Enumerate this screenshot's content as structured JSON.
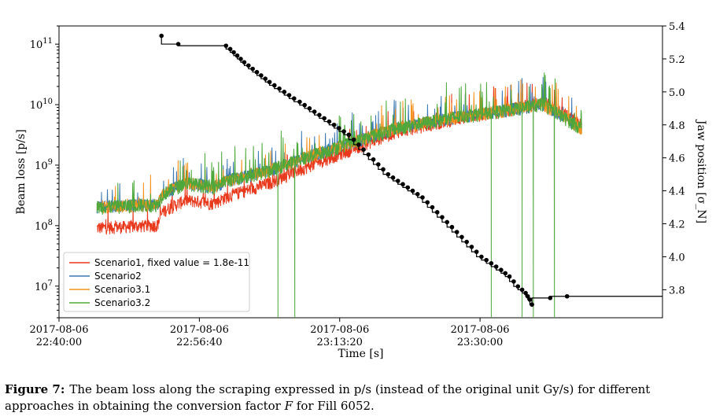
{
  "chart_data": {
    "type": "line",
    "xlabel": "Time [s]",
    "ylabel_left": "Beam loss [p/s]",
    "ylabel_right": "Jaw position [σ_N]",
    "xlim": [
      0,
      4300
    ],
    "ylim_left": [
      3000000.0,
      200000000000.0
    ],
    "yscale_left": "log",
    "ylim_right": [
      3.63,
      5.4
    ],
    "x_ticks": [
      {
        "x": 0,
        "date": "2017-08-06",
        "time": "22:40:00"
      },
      {
        "x": 1000,
        "date": "2017-08-06",
        "time": "22:56:40"
      },
      {
        "x": 2000,
        "date": "2017-08-06",
        "time": "23:13:20"
      },
      {
        "x": 3000,
        "date": "2017-08-06",
        "time": "23:30:00"
      }
    ],
    "y_ticks_left": [
      {
        "value": 10000000.0,
        "base": "10",
        "exp": "7"
      },
      {
        "value": 100000000.0,
        "base": "10",
        "exp": "8"
      },
      {
        "value": 1000000000.0,
        "base": "10",
        "exp": "9"
      },
      {
        "value": 10000000000.0,
        "base": "10",
        "exp": "10"
      },
      {
        "value": 100000000000.0,
        "base": "10",
        "exp": "11"
      }
    ],
    "y_ticks_right": [
      "3.8",
      "4.0",
      "4.2",
      "4.4",
      "4.6",
      "4.8",
      "5.0",
      "5.2",
      "5.4"
    ],
    "legend_position": "lower-left",
    "legend": [
      {
        "label": "Scenario1, fixed value = 1.8e-11",
        "color": "#e8391d"
      },
      {
        "label": "Scenario2",
        "color": "#3b78b2"
      },
      {
        "label": "Scenario3.1",
        "color": "#f3921f"
      },
      {
        "label": "Scenario3.2",
        "color": "#4ca83a"
      }
    ],
    "loss_envelope": {
      "x": [
        270,
        700,
        740,
        900,
        1100,
        1200,
        1500,
        1700,
        2000,
        2400,
        2800,
        3200,
        3450,
        3600,
        3725
      ],
      "scenario3_y": [
        200000000.0,
        220000000.0,
        330000000.0,
        500000000.0,
        430000000.0,
        550000000.0,
        800000000.0,
        1200000000.0,
        2000000000.0,
        4000000000.0,
        6000000000.0,
        8000000000.0,
        10000000000.0,
        6000000000.0,
        4000000000.0
      ],
      "scenario1_y": [
        90000000.0,
        100000000.0,
        170000000.0,
        260000000.0,
        230000000.0,
        300000000.0,
        500000000.0,
        800000000.0,
        1500000000.0,
        3500000000.0,
        5500000000.0,
        8000000000.0,
        11000000000.0,
        7000000000.0,
        4500000000.0
      ]
    },
    "loss_dropouts_x": [
      1560,
      1680,
      3080,
      3300,
      3380,
      3530
    ],
    "jaw_position": {
      "color": "#000000",
      "x": [
        730,
        850,
        1190,
        1220,
        1245,
        1270,
        1295,
        1320,
        1350,
        1380,
        1410,
        1440,
        1470,
        1500,
        1535,
        1570,
        1605,
        1640,
        1675,
        1715,
        1750,
        1785,
        1820,
        1855,
        1890,
        1925,
        1960,
        1995,
        2030,
        2065,
        2100,
        2135,
        2170,
        2205,
        2240,
        2275,
        2310,
        2345,
        2380,
        2415,
        2450,
        2485,
        2520,
        2555,
        2590,
        2625,
        2660,
        2695,
        2730,
        2765,
        2800,
        2835,
        2870,
        2905,
        2940,
        2975,
        3010,
        3045,
        3080,
        3115,
        3150,
        3180,
        3210,
        3240,
        3270,
        3300,
        3325,
        3340,
        3355,
        3370,
        3500,
        3620
      ],
      "y": [
        5.34,
        5.29,
        5.28,
        5.26,
        5.24,
        5.22,
        5.2,
        5.18,
        5.16,
        5.14,
        5.12,
        5.1,
        5.08,
        5.06,
        5.04,
        5.02,
        5.0,
        4.98,
        4.96,
        4.94,
        4.92,
        4.9,
        4.88,
        4.86,
        4.84,
        4.82,
        4.8,
        4.78,
        4.76,
        4.74,
        4.71,
        4.68,
        4.65,
        4.62,
        4.59,
        4.56,
        4.53,
        4.5,
        4.48,
        4.46,
        4.44,
        4.42,
        4.4,
        4.38,
        4.36,
        4.33,
        4.3,
        4.27,
        4.24,
        4.21,
        4.18,
        4.15,
        4.12,
        4.09,
        4.06,
        4.03,
        4.0,
        3.98,
        3.96,
        3.94,
        3.92,
        3.9,
        3.88,
        3.85,
        3.82,
        3.8,
        3.78,
        3.76,
        3.74,
        3.71,
        3.75,
        3.76
      ]
    }
  },
  "caption": {
    "label": "Figure 7:",
    "text_before": "The beam loss along the scraping expressed in p/s (instead of the original unit Gy/s) for different approaches in obtaining the conversion factor ",
    "variable": "F",
    "text_after": " for Fill 6052."
  }
}
